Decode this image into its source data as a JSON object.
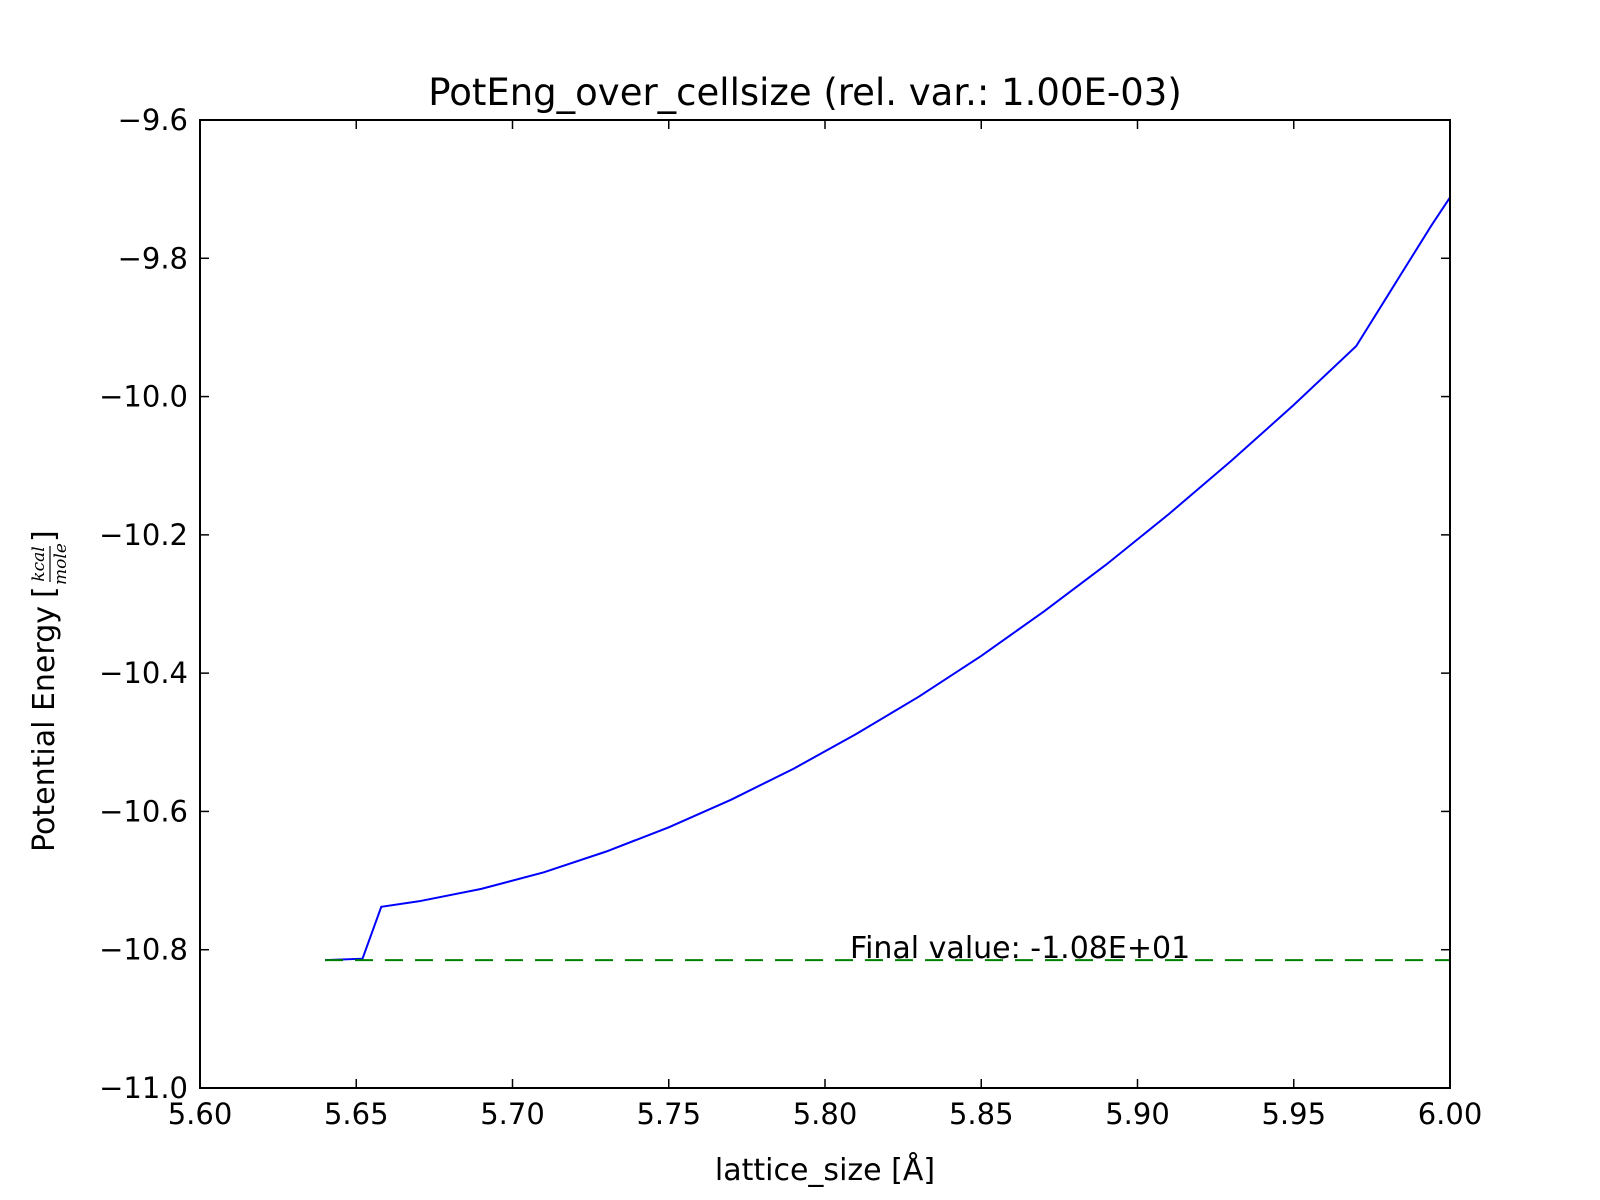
{
  "chart_data": {
    "type": "line",
    "title": "PotEng_over_cellsize (rel. var.: 1.00E-03)",
    "xlabel": "lattice_size [Å]",
    "ylabel": "Potential Energy [kcal/mole]",
    "ylabel_text": "Potential Energy",
    "ylabel_unit_num": "kcal",
    "ylabel_unit_den": "mole",
    "xlim": [
      5.6,
      6.0
    ],
    "ylim": [
      -11.0,
      -9.6
    ],
    "x_ticks": [
      5.6,
      5.65,
      5.7,
      5.75,
      5.8,
      5.85,
      5.9,
      5.95,
      6.0
    ],
    "x_tick_labels": [
      "5.60",
      "5.65",
      "5.70",
      "5.75",
      "5.80",
      "5.85",
      "5.90",
      "5.95",
      "6.00"
    ],
    "y_ticks": [
      -9.6,
      -9.8,
      -10.0,
      -10.2,
      -10.4,
      -10.6,
      -10.8,
      -11.0
    ],
    "y_tick_labels": [
      "−9.6",
      "−9.8",
      "−10.0",
      "−10.2",
      "−10.4",
      "−10.6",
      "−10.8",
      "−11.0"
    ],
    "grid": false,
    "series": [
      {
        "color": "#0000ff",
        "style": "solid",
        "x": [
          5.64,
          5.652,
          5.658,
          5.67,
          5.69,
          5.71,
          5.73,
          5.75,
          5.77,
          5.79,
          5.81,
          5.83,
          5.85,
          5.87,
          5.89,
          5.91,
          5.93,
          5.95,
          5.97,
          5.994,
          6.0
        ],
        "y": [
          -10.815,
          -10.813,
          -10.738,
          -10.73,
          -10.712,
          -10.688,
          -10.658,
          -10.623,
          -10.583,
          -10.538,
          -10.488,
          -10.434,
          -10.375,
          -10.311,
          -10.243,
          -10.17,
          -10.093,
          -10.012,
          -9.927,
          -9.753,
          -9.712
        ]
      },
      {
        "color": "#008000",
        "style": "dashed",
        "x": [
          5.64,
          6.0
        ],
        "y": [
          -10.815,
          -10.815
        ]
      }
    ],
    "annotation": {
      "text": "Final value: -1.08E+01",
      "x": 5.808,
      "y": -10.815,
      "color": "#008000"
    }
  }
}
